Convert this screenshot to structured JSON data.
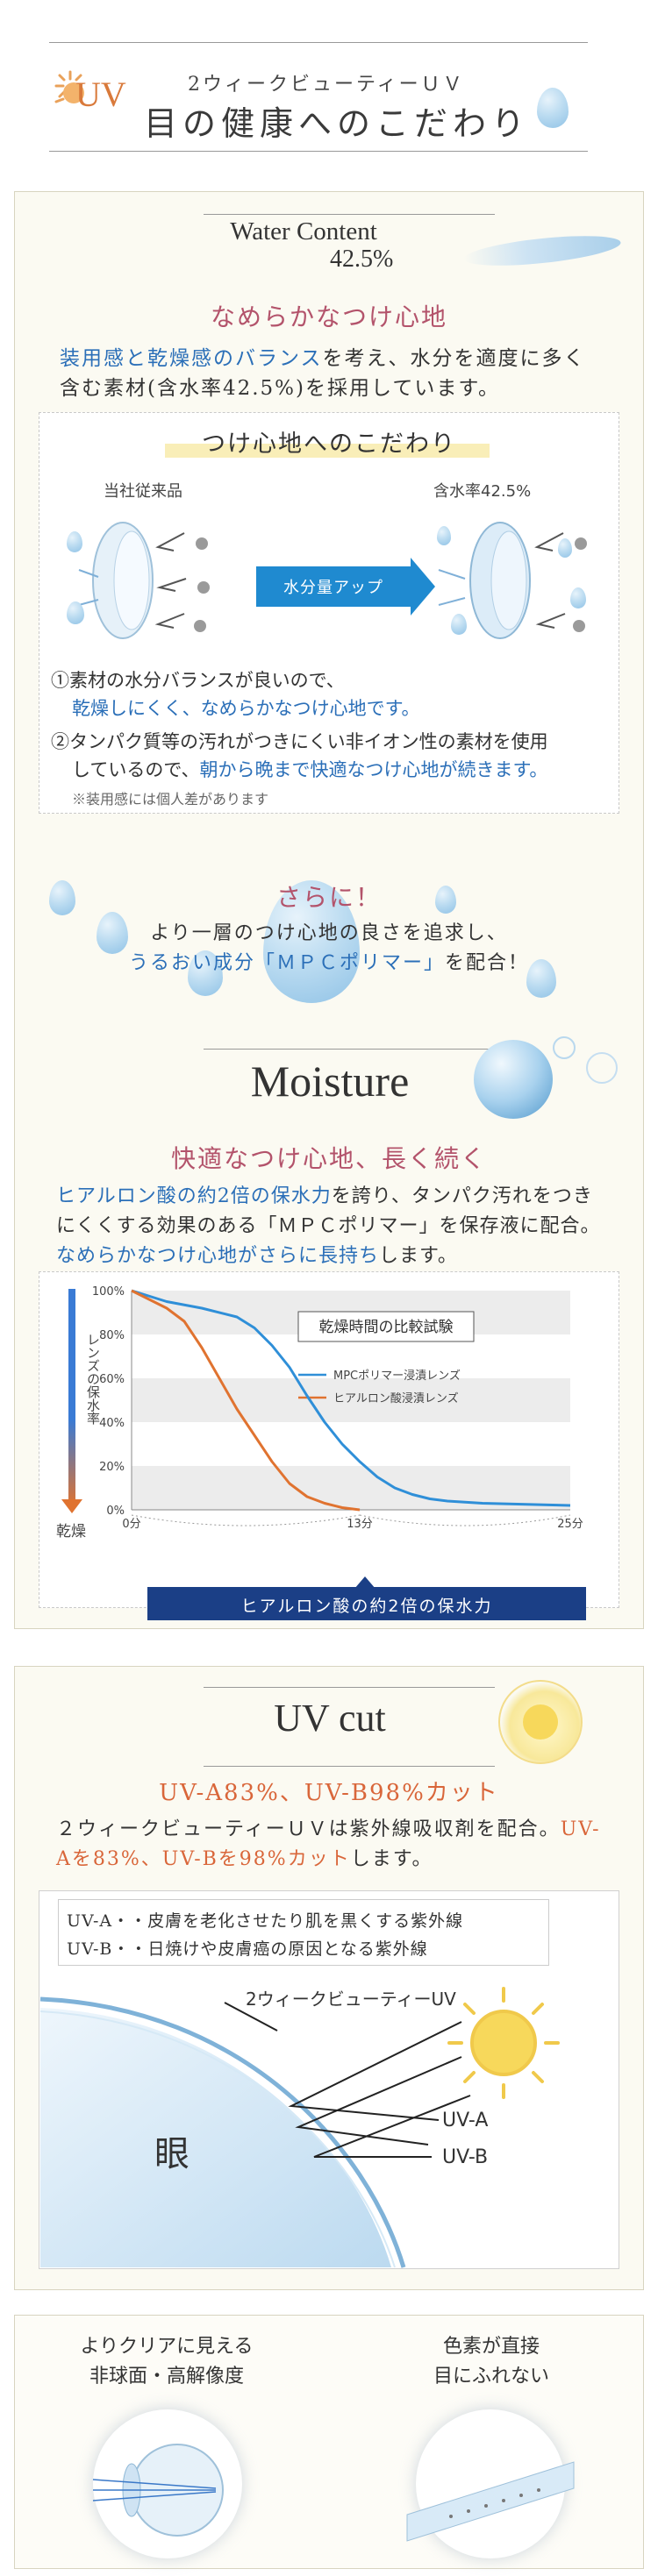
{
  "header": {
    "uv_mark": "UV",
    "subtitle": "2ウィークビューティーＵＶ",
    "title": "目の健康へのこだわり"
  },
  "water": {
    "heading": "Water Content",
    "percent": "42.5%",
    "subheading": "なめらかなつけ心地",
    "body_pre": "装用感と乾燥感のバランス",
    "body_mid": "を考え、水分を適度に多く含む素材(含水率42.5%)を採用しています。",
    "box_title": "つけ心地へのこだわり",
    "left_label": "当社従来品",
    "right_label": "含水率42.5%",
    "arrow_label": "水分量アップ",
    "point1_a": "①素材の水分バランスが良いので、",
    "point1_b": "乾燥しにくく、なめらかなつけ心地です。",
    "point2_a": "②タンパク質等の汚れがつきにくい非イオン性の素材を使用",
    "point2_b_pre": "しているので、",
    "point2_b_em": "朝から晩まで快適なつけ心地が続きます。",
    "note": "※装用感には個人差があります",
    "more_title": "さらに！",
    "more_line1": "より一層のつけ心地の良さを追求し、",
    "more_line2_em": "うるおい成分「ＭＰＣポリマー」",
    "more_line2_post": "を配合！"
  },
  "moisture": {
    "heading": "Moisture",
    "subheading": "快適なつけ心地、長く続く",
    "body_a_em": "ヒアルロン酸の約2倍の保水力",
    "body_a_post": "を誇り、タンパク汚れをつきにくくする効果のある「ＭＰＣポリマー」を保存液に配合。",
    "body_b_em": "なめらかなつけ心地がさらに長持ち",
    "body_b_post": "します。",
    "y_axis_label": "レンズの保水率",
    "y_axis_bottom": "乾燥",
    "banner": "ヒアルロン酸の約2倍の保水力"
  },
  "chart_data": {
    "type": "line",
    "title": "乾燥時間の比較試験",
    "ylim": [
      0,
      100
    ],
    "y_ticks": [
      "100%",
      "80%",
      "60%",
      "40%",
      "20%",
      "0%"
    ],
    "x_ticks": [
      "0分",
      "13分",
      "25分"
    ],
    "xlim": [
      0,
      25
    ],
    "series": [
      {
        "name": "MPCポリマー浸漬レンズ",
        "color": "#2f8fd8",
        "x": [
          0,
          2,
          4,
          6,
          7,
          8,
          9,
          10,
          11,
          12,
          13,
          14,
          15,
          16,
          17,
          18,
          19,
          20,
          21,
          22,
          23,
          24,
          25
        ],
        "y": [
          100,
          95,
          92,
          88,
          83,
          75,
          65,
          52,
          40,
          30,
          22,
          15,
          10,
          7,
          5,
          4,
          3.5,
          3,
          2.8,
          2.6,
          2.4,
          2.2,
          2
        ]
      },
      {
        "name": "ヒアルロン酸浸漬レンズ",
        "color": "#e07330",
        "x": [
          0,
          2,
          3,
          4,
          5,
          6,
          7,
          8,
          9,
          10,
          11,
          12,
          13
        ],
        "y": [
          100,
          92,
          86,
          74,
          60,
          46,
          34,
          22,
          12,
          6,
          3,
          1,
          0
        ]
      }
    ]
  },
  "uv": {
    "heading": "UV cut",
    "subheading": "UV-A83%、UV-B98%カット",
    "body_a": "２ウィークビューティーＵＶは紫外線吸収剤を配合。",
    "body_em": "UV-Aを83%、UV-Bを98%カット",
    "body_post": "します。",
    "def_a": "UV-A・・皮膚を老化させたり肌を黒くする紫外線",
    "def_b": "UV-B・・日焼けや皮膚癌の原因となる紫外線",
    "lens_label": "2ウィークビューティーUV",
    "eye_label": "眼",
    "uva_label": "UV-A",
    "uvb_label": "UV-B"
  },
  "footer": {
    "left_line1": "よりクリアに見える",
    "left_line2": "非球面・高解像度",
    "right_line1": "色素が直接",
    "right_line2": "目にふれない"
  }
}
